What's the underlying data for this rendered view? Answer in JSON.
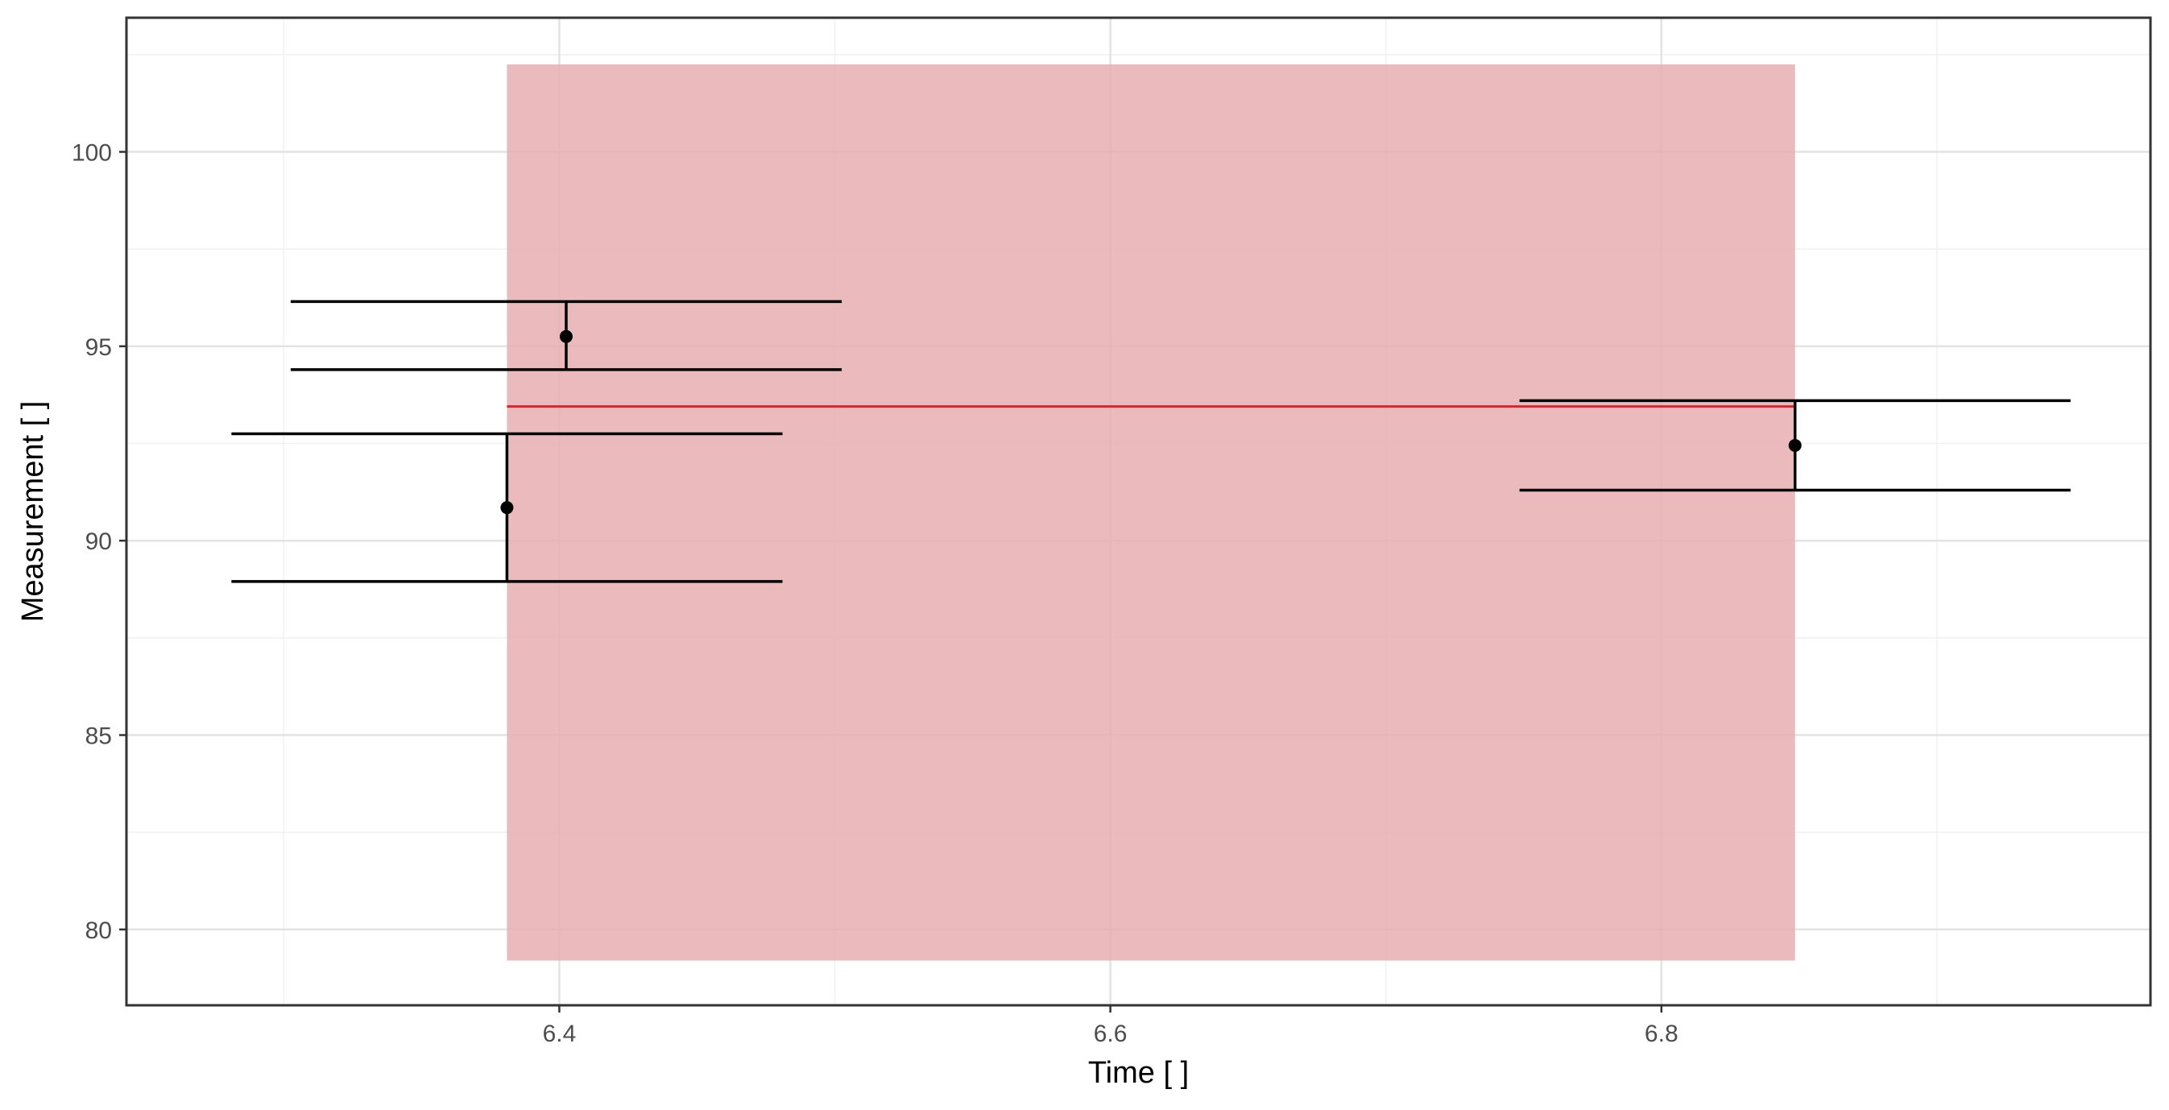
{
  "chart_data": {
    "type": "scatter",
    "xlabel": "Time [ ]",
    "ylabel": "Measurement [ ]",
    "xlim": [
      6.2429,
      6.9775
    ],
    "ylim": [
      78.05,
      103.45
    ],
    "x_ticks": [
      6.4,
      6.6,
      6.8
    ],
    "x_tick_labels": [
      "6.4",
      "6.6",
      "6.8"
    ],
    "y_ticks": [
      80,
      85,
      90,
      95,
      100
    ],
    "y_tick_labels": [
      "80",
      "85",
      "90",
      "95",
      "100"
    ],
    "x_minor_ticks": [
      6.3,
      6.5,
      6.7,
      6.9
    ],
    "y_minor_ticks": [
      82.5,
      87.5,
      92.5,
      97.5,
      102.5
    ],
    "grid": true,
    "legend": "none",
    "points": [
      {
        "x": 6.381,
        "y": 90.85,
        "ymin": 88.95,
        "ymax": 92.75,
        "xmin": 6.281,
        "xmax": 6.481
      },
      {
        "x": 6.4025,
        "y": 95.25,
        "ymin": 94.4,
        "ymax": 96.15,
        "xmin": 6.3025,
        "xmax": 6.5025
      },
      {
        "x": 6.8485,
        "y": 92.45,
        "ymin": 91.3,
        "ymax": 93.6,
        "xmin": 6.7485,
        "xmax": 6.9485
      }
    ],
    "mean_line": {
      "y": 93.45,
      "x_start": 6.381,
      "x_end": 6.8485
    },
    "interval_band": {
      "x_start": 6.381,
      "x_end": 6.8485,
      "y_low": 79.2,
      "y_high": 102.25
    },
    "colors": {
      "band": "#e8aeb0",
      "mean_line": "#d7262c",
      "points": "#000000",
      "panel_border": "#333333",
      "grid_major": "#e3e3e3",
      "grid_minor": "#f1f1f1"
    }
  }
}
